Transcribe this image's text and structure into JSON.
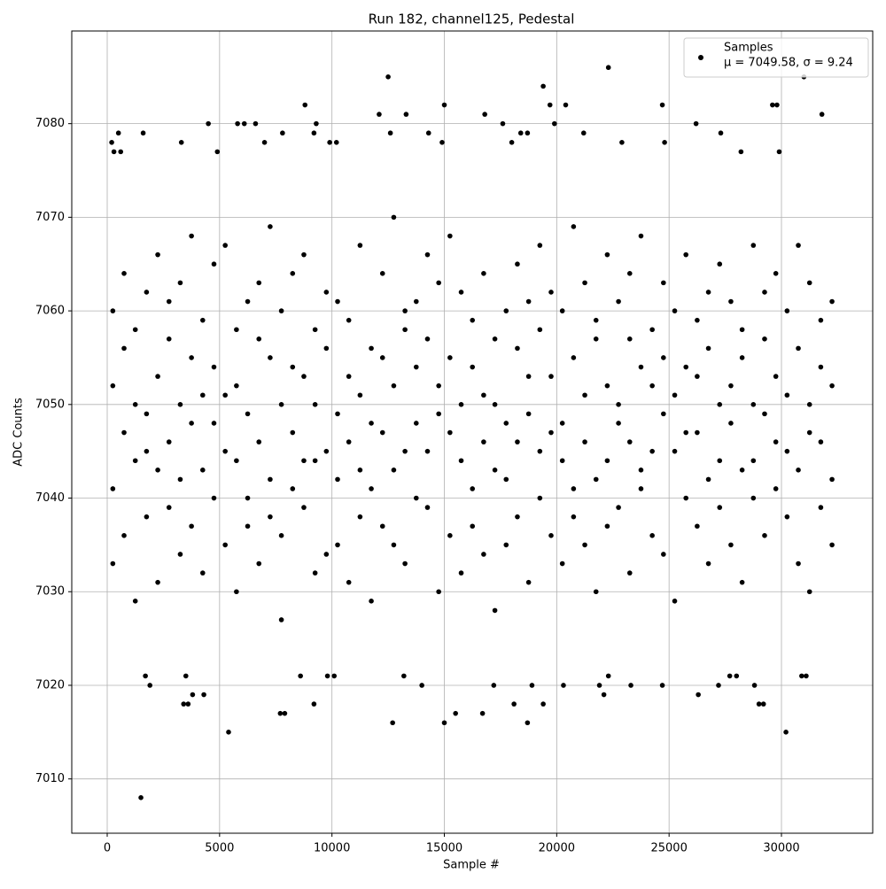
{
  "chart_data": {
    "type": "scatter",
    "title": "Run 182, channel125, Pedestal",
    "x_label": "Sample #",
    "y_label": "ADC Counts",
    "xlim": [
      -1577,
      34060
    ],
    "ylim": [
      7004.2,
      7089.9
    ],
    "xticks": [
      0,
      5000,
      10000,
      15000,
      20000,
      25000,
      30000
    ],
    "yticks": [
      7010,
      7020,
      7030,
      7040,
      7050,
      7060,
      7070,
      7080
    ],
    "grid": true,
    "legend_position": "upper right",
    "series": [
      {
        "name": "Samples",
        "stats_label": "μ = 7049.58, σ = 9.24",
        "color": "#000000",
        "x": [
          1500,
          5400,
          12700,
          15000,
          18700,
          30200,
          7700,
          7900,
          15500,
          16700,
          3400,
          3600,
          9200,
          18100,
          19400,
          29000,
          29200,
          4300,
          3800,
          22100,
          26300,
          1900,
          14000,
          17200,
          20300,
          21900,
          23300,
          24700,
          27200,
          28800,
          1700,
          3500,
          9800,
          10100,
          13200,
          30900,
          31100,
          8600,
          18900,
          22300,
          27700,
          28000,
          22300,
          12500,
          31000,
          19400,
          8800,
          15000,
          19700,
          20400,
          24700,
          29600,
          29800,
          12100,
          13300,
          16800,
          31800,
          200,
          1600,
          4500,
          5800,
          6100,
          6600,
          9300,
          17600,
          19900,
          26200,
          7800,
          9200,
          12600,
          14300,
          18400,
          18700,
          21200,
          27300,
          3300,
          9900,
          10200,
          14900,
          18000,
          22900,
          24800,
          7000,
          500,
          600,
          300,
          4900,
          29900,
          28200,
          250,
          250,
          250,
          250,
          750,
          750,
          750,
          750,
          1250,
          1250,
          1250,
          1250,
          1750,
          1750,
          1750,
          1750,
          2250,
          2250,
          2250,
          2250,
          2750,
          2750,
          2750,
          2750,
          3250,
          3250,
          3250,
          3250,
          3750,
          3750,
          3750,
          3750,
          4250,
          4250,
          4250,
          4250,
          4750,
          4750,
          4750,
          4750,
          5250,
          5250,
          5250,
          5250,
          5750,
          5750,
          5750,
          5750,
          6250,
          6250,
          6250,
          6250,
          6750,
          6750,
          6750,
          6750,
          7250,
          7250,
          7250,
          7250,
          7750,
          7750,
          7750,
          7750,
          8250,
          8250,
          8250,
          8250,
          8750,
          8750,
          8750,
          8750,
          9250,
          9250,
          9250,
          9250,
          9750,
          9750,
          9750,
          9750,
          10250,
          10250,
          10250,
          10250,
          10750,
          10750,
          10750,
          10750,
          11250,
          11250,
          11250,
          11250,
          11750,
          11750,
          11750,
          11750,
          12250,
          12250,
          12250,
          12250,
          12750,
          12750,
          12750,
          12750,
          13250,
          13250,
          13250,
          13250,
          13750,
          13750,
          13750,
          13750,
          14250,
          14250,
          14250,
          14250,
          14750,
          14750,
          14750,
          14750,
          15250,
          15250,
          15250,
          15250,
          15750,
          15750,
          15750,
          15750,
          16250,
          16250,
          16250,
          16250,
          16750,
          16750,
          16750,
          16750,
          17250,
          17250,
          17250,
          17250,
          17750,
          17750,
          17750,
          17750,
          18250,
          18250,
          18250,
          18250,
          18750,
          18750,
          18750,
          18750,
          19250,
          19250,
          19250,
          19250,
          19750,
          19750,
          19750,
          19750,
          20250,
          20250,
          20250,
          20250,
          20750,
          20750,
          20750,
          20750,
          21250,
          21250,
          21250,
          21250,
          21750,
          21750,
          21750,
          21750,
          22250,
          22250,
          22250,
          22250,
          22750,
          22750,
          22750,
          22750,
          23250,
          23250,
          23250,
          23250,
          23750,
          23750,
          23750,
          23750,
          24250,
          24250,
          24250,
          24250,
          24750,
          24750,
          24750,
          24750,
          25250,
          25250,
          25250,
          25250,
          25750,
          25750,
          25750,
          25750,
          26250,
          26250,
          26250,
          26250,
          26750,
          26750,
          26750,
          26750,
          27250,
          27250,
          27250,
          27250,
          27750,
          27750,
          27750,
          27750,
          28250,
          28250,
          28250,
          28250,
          28750,
          28750,
          28750,
          28750,
          29250,
          29250,
          29250,
          29250,
          29750,
          29750,
          29750,
          29750,
          30250,
          30250,
          30250,
          30250,
          30750,
          30750,
          30750,
          30750,
          31250,
          31250,
          31250,
          31250,
          31750,
          31750,
          31750,
          31750,
          32250,
          32250,
          32250,
          32250
        ],
        "values": [
          7008,
          7015,
          7016,
          7016,
          7016,
          7015,
          7017,
          7017,
          7017,
          7017,
          7018,
          7018,
          7018,
          7018,
          7018,
          7018,
          7018,
          7019,
          7019,
          7019,
          7019,
          7020,
          7020,
          7020,
          7020,
          7020,
          7020,
          7020,
          7020,
          7020,
          7021,
          7021,
          7021,
          7021,
          7021,
          7021,
          7021,
          7021,
          7020,
          7021,
          7021,
          7021,
          7086,
          7085,
          7085,
          7084,
          7082,
          7082,
          7082,
          7082,
          7082,
          7082,
          7082,
          7081,
          7081,
          7081,
          7081,
          7078,
          7079,
          7080,
          7080,
          7080,
          7080,
          7080,
          7080,
          7080,
          7080,
          7079,
          7079,
          7079,
          7079,
          7079,
          7079,
          7079,
          7079,
          7078,
          7078,
          7078,
          7078,
          7078,
          7078,
          7078,
          7078,
          7079,
          7077,
          7077,
          7077,
          7077,
          7077,
          7041,
          7052,
          7060,
          7033,
          7047,
          7056,
          7064,
          7036,
          7044,
          7050,
          7058,
          7029,
          7049,
          7062,
          7038,
          7045,
          7053,
          7043,
          7066,
          7031,
          7046,
          7057,
          7039,
          7061,
          7050,
          7042,
          7063,
          7034,
          7055,
          7048,
          7037,
          7068,
          7043,
          7059,
          7051,
          7032,
          7048,
          7054,
          7040,
          7065,
          7045,
          7051,
          7067,
          7035,
          7052,
          7044,
          7058,
          7030,
          7040,
          7061,
          7049,
          7037,
          7057,
          7046,
          7033,
          7063,
          7042,
          7055,
          7069,
          7038,
          7050,
          7036,
          7060,
          7027,
          7047,
          7064,
          7041,
          7054,
          7053,
          7039,
          7066,
          7044,
          7044,
          7058,
          7032,
          7050,
          7056,
          7045,
          7062,
          7034,
          7049,
          7035,
          7061,
          7042,
          7046,
          7059,
          7031,
          7053,
          7051,
          7043,
          7067,
          7038,
          7041,
          7056,
          7048,
          7029,
          7055,
          7037,
          7064,
          7047,
          7043,
          7052,
          7070,
          7035,
          7058,
          7045,
          7033,
          7060,
          7048,
          7061,
          7040,
          7054,
          7045,
          7039,
          7057,
          7066,
          7052,
          7030,
          7049,
          7063,
          7047,
          7055,
          7036,
          7068,
          7044,
          7050,
          7062,
          7032,
          7054,
          7041,
          7059,
          7037,
          7046,
          7064,
          7034,
          7051,
          7050,
          7043,
          7057,
          7028,
          7042,
          7060,
          7048,
          7035,
          7056,
          7038,
          7065,
          7046,
          7049,
          7053,
          7031,
          7061,
          7045,
          7058,
          7040,
          7067,
          7053,
          7036,
          7047,
          7062,
          7048,
          7044,
          7060,
          7033,
          7041,
          7055,
          7069,
          7038,
          7051,
          7046,
          7035,
          7063,
          7057,
          7042,
          7059,
          7030,
          7044,
          7052,
          7066,
          7037,
          7050,
          7039,
          7061,
          7048,
          7046,
          7057,
          7032,
          7064,
          7043,
          7054,
          7041,
          7068,
          7052,
          7036,
          7058,
          7045,
          7049,
          7063,
          7034,
          7055,
          7045,
          7051,
          7029,
          7060,
          7054,
          7040,
          7066,
          7047,
          7047,
          7059,
          7037,
          7053,
          7042,
          7056,
          7062,
          7033,
          7050,
          7044,
          7065,
          7039,
          7048,
          7061,
          7035,
          7052,
          7055,
          7043,
          7058,
          7031,
          7044,
          7050,
          7067,
          7040,
          7049,
          7057,
          7036,
          7062,
          7046,
          7053,
          7041,
          7064,
          7051,
          7038,
          7060,
          7045,
          7043,
          7056,
          7033,
          7067,
          7050,
          7047,
          7063,
          7030,
          7046,
          7054,
          7039,
          7059,
          7052,
          7042,
          7061,
          7035
        ]
      }
    ]
  }
}
